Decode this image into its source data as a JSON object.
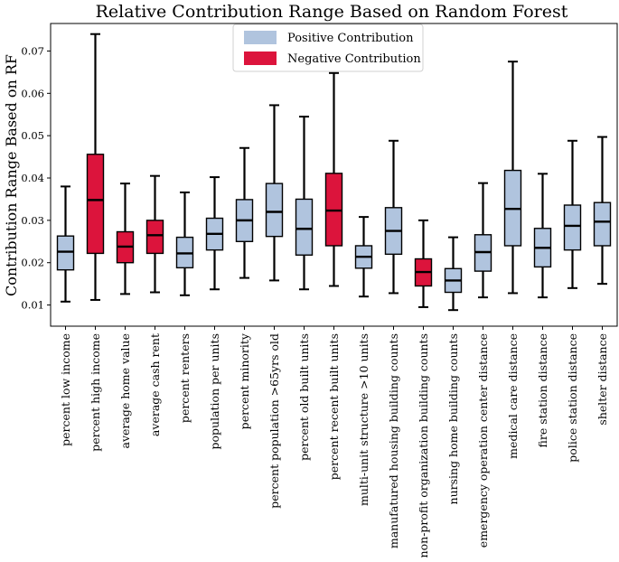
{
  "chart_data": {
    "type": "box",
    "title": "Relative Contribution Range Based on Random Forest",
    "ylabel": "Contribution Range Based on RF",
    "xlabel": "",
    "ylim": [
      0.005,
      0.0765
    ],
    "yticks": [
      0.01,
      0.02,
      0.03,
      0.04,
      0.05,
      0.06,
      0.07
    ],
    "ytick_labels": [
      "0.01",
      "0.02",
      "0.03",
      "0.04",
      "0.05",
      "0.06",
      "0.07"
    ],
    "grid": false,
    "legend": {
      "placement": "top-center",
      "entries": [
        {
          "label": "Positive Contribution",
          "color": "#b0c4de"
        },
        {
          "label": "Negative Contribution",
          "color": "#dc143c"
        }
      ]
    },
    "categories": [
      "percent low income",
      "percent high income",
      "average home value",
      "average cash rent",
      "percent renters",
      "population per units",
      "percent minority",
      "percent population >65yrs old",
      "percent old built units",
      "percent recent built units",
      "multi-unit structure >10 units",
      "manufatured housing building counts",
      "non-profit organization building counts",
      "nursing home building counts",
      "emergency operation center distance",
      "medical care distance",
      "fire station distance",
      "police station distance",
      "shelter distance"
    ],
    "boxes": [
      {
        "whisker_low": 0.0108,
        "q1": 0.0183,
        "median": 0.0226,
        "q3": 0.0263,
        "whisker_high": 0.038,
        "sign": "positive"
      },
      {
        "whisker_low": 0.0112,
        "q1": 0.0222,
        "median": 0.0348,
        "q3": 0.0456,
        "whisker_high": 0.074,
        "sign": "negative"
      },
      {
        "whisker_low": 0.0126,
        "q1": 0.02,
        "median": 0.0238,
        "q3": 0.0273,
        "whisker_high": 0.0387,
        "sign": "negative"
      },
      {
        "whisker_low": 0.013,
        "q1": 0.0222,
        "median": 0.0265,
        "q3": 0.03,
        "whisker_high": 0.0405,
        "sign": "negative"
      },
      {
        "whisker_low": 0.0123,
        "q1": 0.0188,
        "median": 0.0222,
        "q3": 0.026,
        "whisker_high": 0.0366,
        "sign": "positive"
      },
      {
        "whisker_low": 0.0137,
        "q1": 0.023,
        "median": 0.0268,
        "q3": 0.0305,
        "whisker_high": 0.0402,
        "sign": "positive"
      },
      {
        "whisker_low": 0.0164,
        "q1": 0.025,
        "median": 0.03,
        "q3": 0.0349,
        "whisker_high": 0.0471,
        "sign": "positive"
      },
      {
        "whisker_low": 0.0158,
        "q1": 0.0262,
        "median": 0.032,
        "q3": 0.0387,
        "whisker_high": 0.0572,
        "sign": "positive"
      },
      {
        "whisker_low": 0.0137,
        "q1": 0.0218,
        "median": 0.028,
        "q3": 0.035,
        "whisker_high": 0.0545,
        "sign": "positive"
      },
      {
        "whisker_low": 0.0145,
        "q1": 0.024,
        "median": 0.0323,
        "q3": 0.0411,
        "whisker_high": 0.0648,
        "sign": "negative"
      },
      {
        "whisker_low": 0.012,
        "q1": 0.0187,
        "median": 0.0214,
        "q3": 0.024,
        "whisker_high": 0.0308,
        "sign": "positive"
      },
      {
        "whisker_low": 0.0128,
        "q1": 0.022,
        "median": 0.0275,
        "q3": 0.033,
        "whisker_high": 0.0488,
        "sign": "positive"
      },
      {
        "whisker_low": 0.0095,
        "q1": 0.0145,
        "median": 0.0178,
        "q3": 0.0209,
        "whisker_high": 0.03,
        "sign": "negative"
      },
      {
        "whisker_low": 0.0088,
        "q1": 0.013,
        "median": 0.0158,
        "q3": 0.0186,
        "whisker_high": 0.026,
        "sign": "positive"
      },
      {
        "whisker_low": 0.0118,
        "q1": 0.018,
        "median": 0.0225,
        "q3": 0.0266,
        "whisker_high": 0.0388,
        "sign": "positive"
      },
      {
        "whisker_low": 0.0128,
        "q1": 0.024,
        "median": 0.0327,
        "q3": 0.0418,
        "whisker_high": 0.0675,
        "sign": "positive"
      },
      {
        "whisker_low": 0.0118,
        "q1": 0.019,
        "median": 0.0235,
        "q3": 0.0281,
        "whisker_high": 0.041,
        "sign": "positive"
      },
      {
        "whisker_low": 0.014,
        "q1": 0.023,
        "median": 0.0287,
        "q3": 0.0336,
        "whisker_high": 0.0488,
        "sign": "positive"
      },
      {
        "whisker_low": 0.015,
        "q1": 0.024,
        "median": 0.0297,
        "q3": 0.0342,
        "whisker_high": 0.0497,
        "sign": "positive"
      }
    ]
  }
}
